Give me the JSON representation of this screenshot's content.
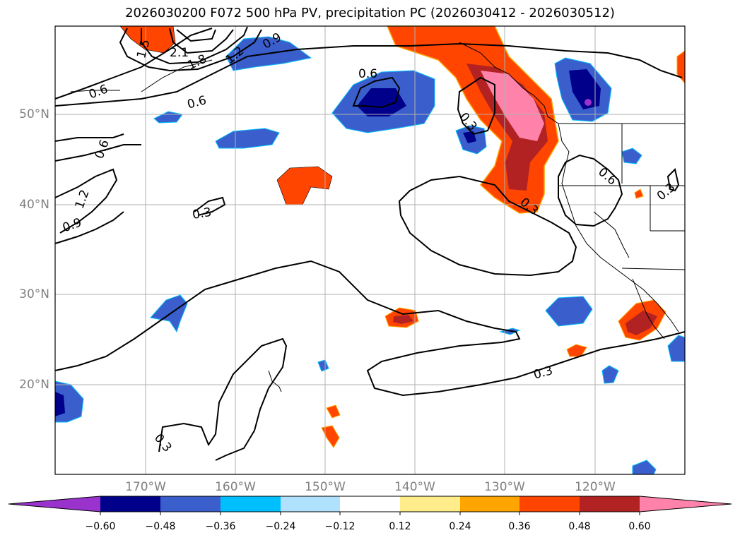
{
  "title": "2026030200 F072 500 hPa PV, precipitation PC (2026030412 - 2026030512)",
  "map": {
    "lat_labels": [
      "50°N",
      "40°N",
      "30°N",
      "20°N"
    ],
    "lon_labels": [
      "170°W",
      "160°W",
      "150°W",
      "140°W",
      "130°W",
      "120°W"
    ],
    "contour_labels": [
      "1.5",
      "2.1",
      "1.8",
      "1.2",
      "0.9",
      "0.6",
      "0.6",
      "0.6",
      "0.6",
      "1.2",
      "0.9",
      "0.3",
      "0.3",
      "0.3",
      "0.6",
      "0.3",
      "0.3",
      "0.3"
    ],
    "colors": {
      "land": "#000000",
      "grid": "#b0b0b0",
      "contour": "#000000",
      "neg_label": "#808080"
    }
  },
  "colorbar": {
    "tick_labels": [
      "−0.60",
      "−0.48",
      "−0.36",
      "−0.24",
      "−0.12",
      "0.12",
      "0.24",
      "0.36",
      "0.48",
      "0.60"
    ],
    "colors": [
      "#9a32cd",
      "#00008b",
      "#3a5fcd",
      "#00bfff",
      "#b0e2ff",
      "#ffffff",
      "#ffec8b",
      "#ffa500",
      "#ff4500",
      "#b22222",
      "#ff82ab"
    ]
  }
}
